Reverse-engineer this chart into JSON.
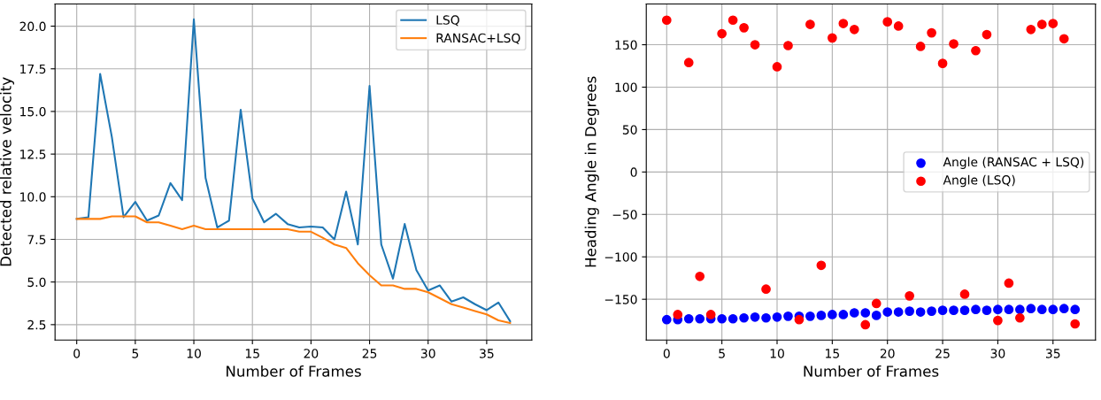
{
  "chart_data": [
    {
      "type": "line",
      "xlabel": "Number of Frames",
      "ylabel": "Detected relative velocity",
      "x": [
        0,
        1,
        2,
        3,
        4,
        5,
        6,
        7,
        8,
        9,
        10,
        11,
        12,
        13,
        14,
        15,
        16,
        17,
        18,
        19,
        20,
        21,
        22,
        23,
        24,
        25,
        26,
        27,
        28,
        29,
        30,
        31,
        32,
        33,
        34,
        35,
        36,
        37
      ],
      "series": [
        {
          "name": "LSQ",
          "color": "#1f77b4",
          "values": [
            8.7,
            8.8,
            17.2,
            13.5,
            8.8,
            9.7,
            8.6,
            8.9,
            10.8,
            9.8,
            20.4,
            11.1,
            8.2,
            8.6,
            15.1,
            9.9,
            8.5,
            9.0,
            8.4,
            8.2,
            8.25,
            8.2,
            7.5,
            10.3,
            7.2,
            16.5,
            7.2,
            5.2,
            8.4,
            5.7,
            4.5,
            4.8,
            3.85,
            4.1,
            3.7,
            3.35,
            3.8,
            2.7
          ]
        },
        {
          "name": "RANSAC+LSQ",
          "color": "#ff7f0e",
          "values": [
            8.7,
            8.7,
            8.7,
            8.85,
            8.85,
            8.85,
            8.5,
            8.5,
            8.3,
            8.1,
            8.3,
            8.1,
            8.1,
            8.1,
            8.1,
            8.1,
            8.1,
            8.1,
            8.1,
            7.95,
            7.95,
            7.6,
            7.2,
            7.0,
            6.1,
            5.4,
            4.8,
            4.8,
            4.6,
            4.6,
            4.4,
            4.05,
            3.7,
            3.5,
            3.3,
            3.1,
            2.75,
            2.6
          ]
        }
      ],
      "xlim": [
        -1.85,
        38.85
      ],
      "xticks": [
        0,
        5,
        10,
        15,
        20,
        25,
        30,
        35
      ],
      "ylim": [
        1.6,
        21.3
      ],
      "yticks": [
        2.5,
        {
          "value": 5,
          "label": "5.0"
        },
        7.5,
        {
          "value": 10,
          "label": "10.0"
        },
        12.5,
        {
          "value": 15,
          "label": "15.0"
        },
        17.5,
        {
          "value": 20,
          "label": "20.0"
        }
      ],
      "grid": true,
      "legend": "top right"
    },
    {
      "type": "scatter",
      "xlabel": "Number of Frames",
      "ylabel": "Heading Angle in Degrees",
      "x": [
        0,
        1,
        2,
        3,
        4,
        5,
        6,
        7,
        8,
        9,
        10,
        11,
        12,
        13,
        14,
        15,
        16,
        17,
        18,
        19,
        20,
        21,
        22,
        23,
        24,
        25,
        26,
        27,
        28,
        29,
        30,
        31,
        32,
        33,
        34,
        35,
        36,
        37
      ],
      "series": [
        {
          "name": "Angle (RANSAC + LSQ)",
          "color": "#0000ff",
          "values": [
            -174,
            -174,
            -173,
            -173,
            -173,
            -173,
            -173,
            -172,
            -171,
            -172,
            -171,
            -170,
            -170,
            -170,
            -169,
            -168,
            -168,
            -166,
            -166,
            -169,
            -165,
            -165,
            -164,
            -165,
            -164,
            -163,
            -163,
            -163,
            -162,
            -163,
            -162,
            -162,
            -162,
            -161,
            -162,
            -162,
            -161,
            -162
          ]
        },
        {
          "name": "Angle (LSQ)",
          "color": "#ff0000",
          "values": [
            179,
            -168,
            129,
            -123,
            -168,
            163,
            179,
            170,
            150,
            -138,
            124,
            149,
            -174,
            174,
            -110,
            158,
            175,
            168,
            -180,
            -155,
            177,
            172,
            -146,
            148,
            164,
            128,
            151,
            -144,
            143,
            162,
            -175,
            -131,
            -172,
            168,
            174,
            175,
            157,
            -179
          ]
        }
      ],
      "xlim": [
        -1.85,
        38.85
      ],
      "xticks": [
        0,
        5,
        10,
        15,
        20,
        25,
        30,
        35
      ],
      "ylim": [
        -198,
        198
      ],
      "yticks": [
        {
          "value": -150,
          "label": "−150"
        },
        {
          "value": -100,
          "label": "−100"
        },
        {
          "value": -50,
          "label": "−50"
        },
        0,
        50,
        100,
        150
      ],
      "grid": true,
      "legend": "right",
      "marker": "circle"
    }
  ]
}
